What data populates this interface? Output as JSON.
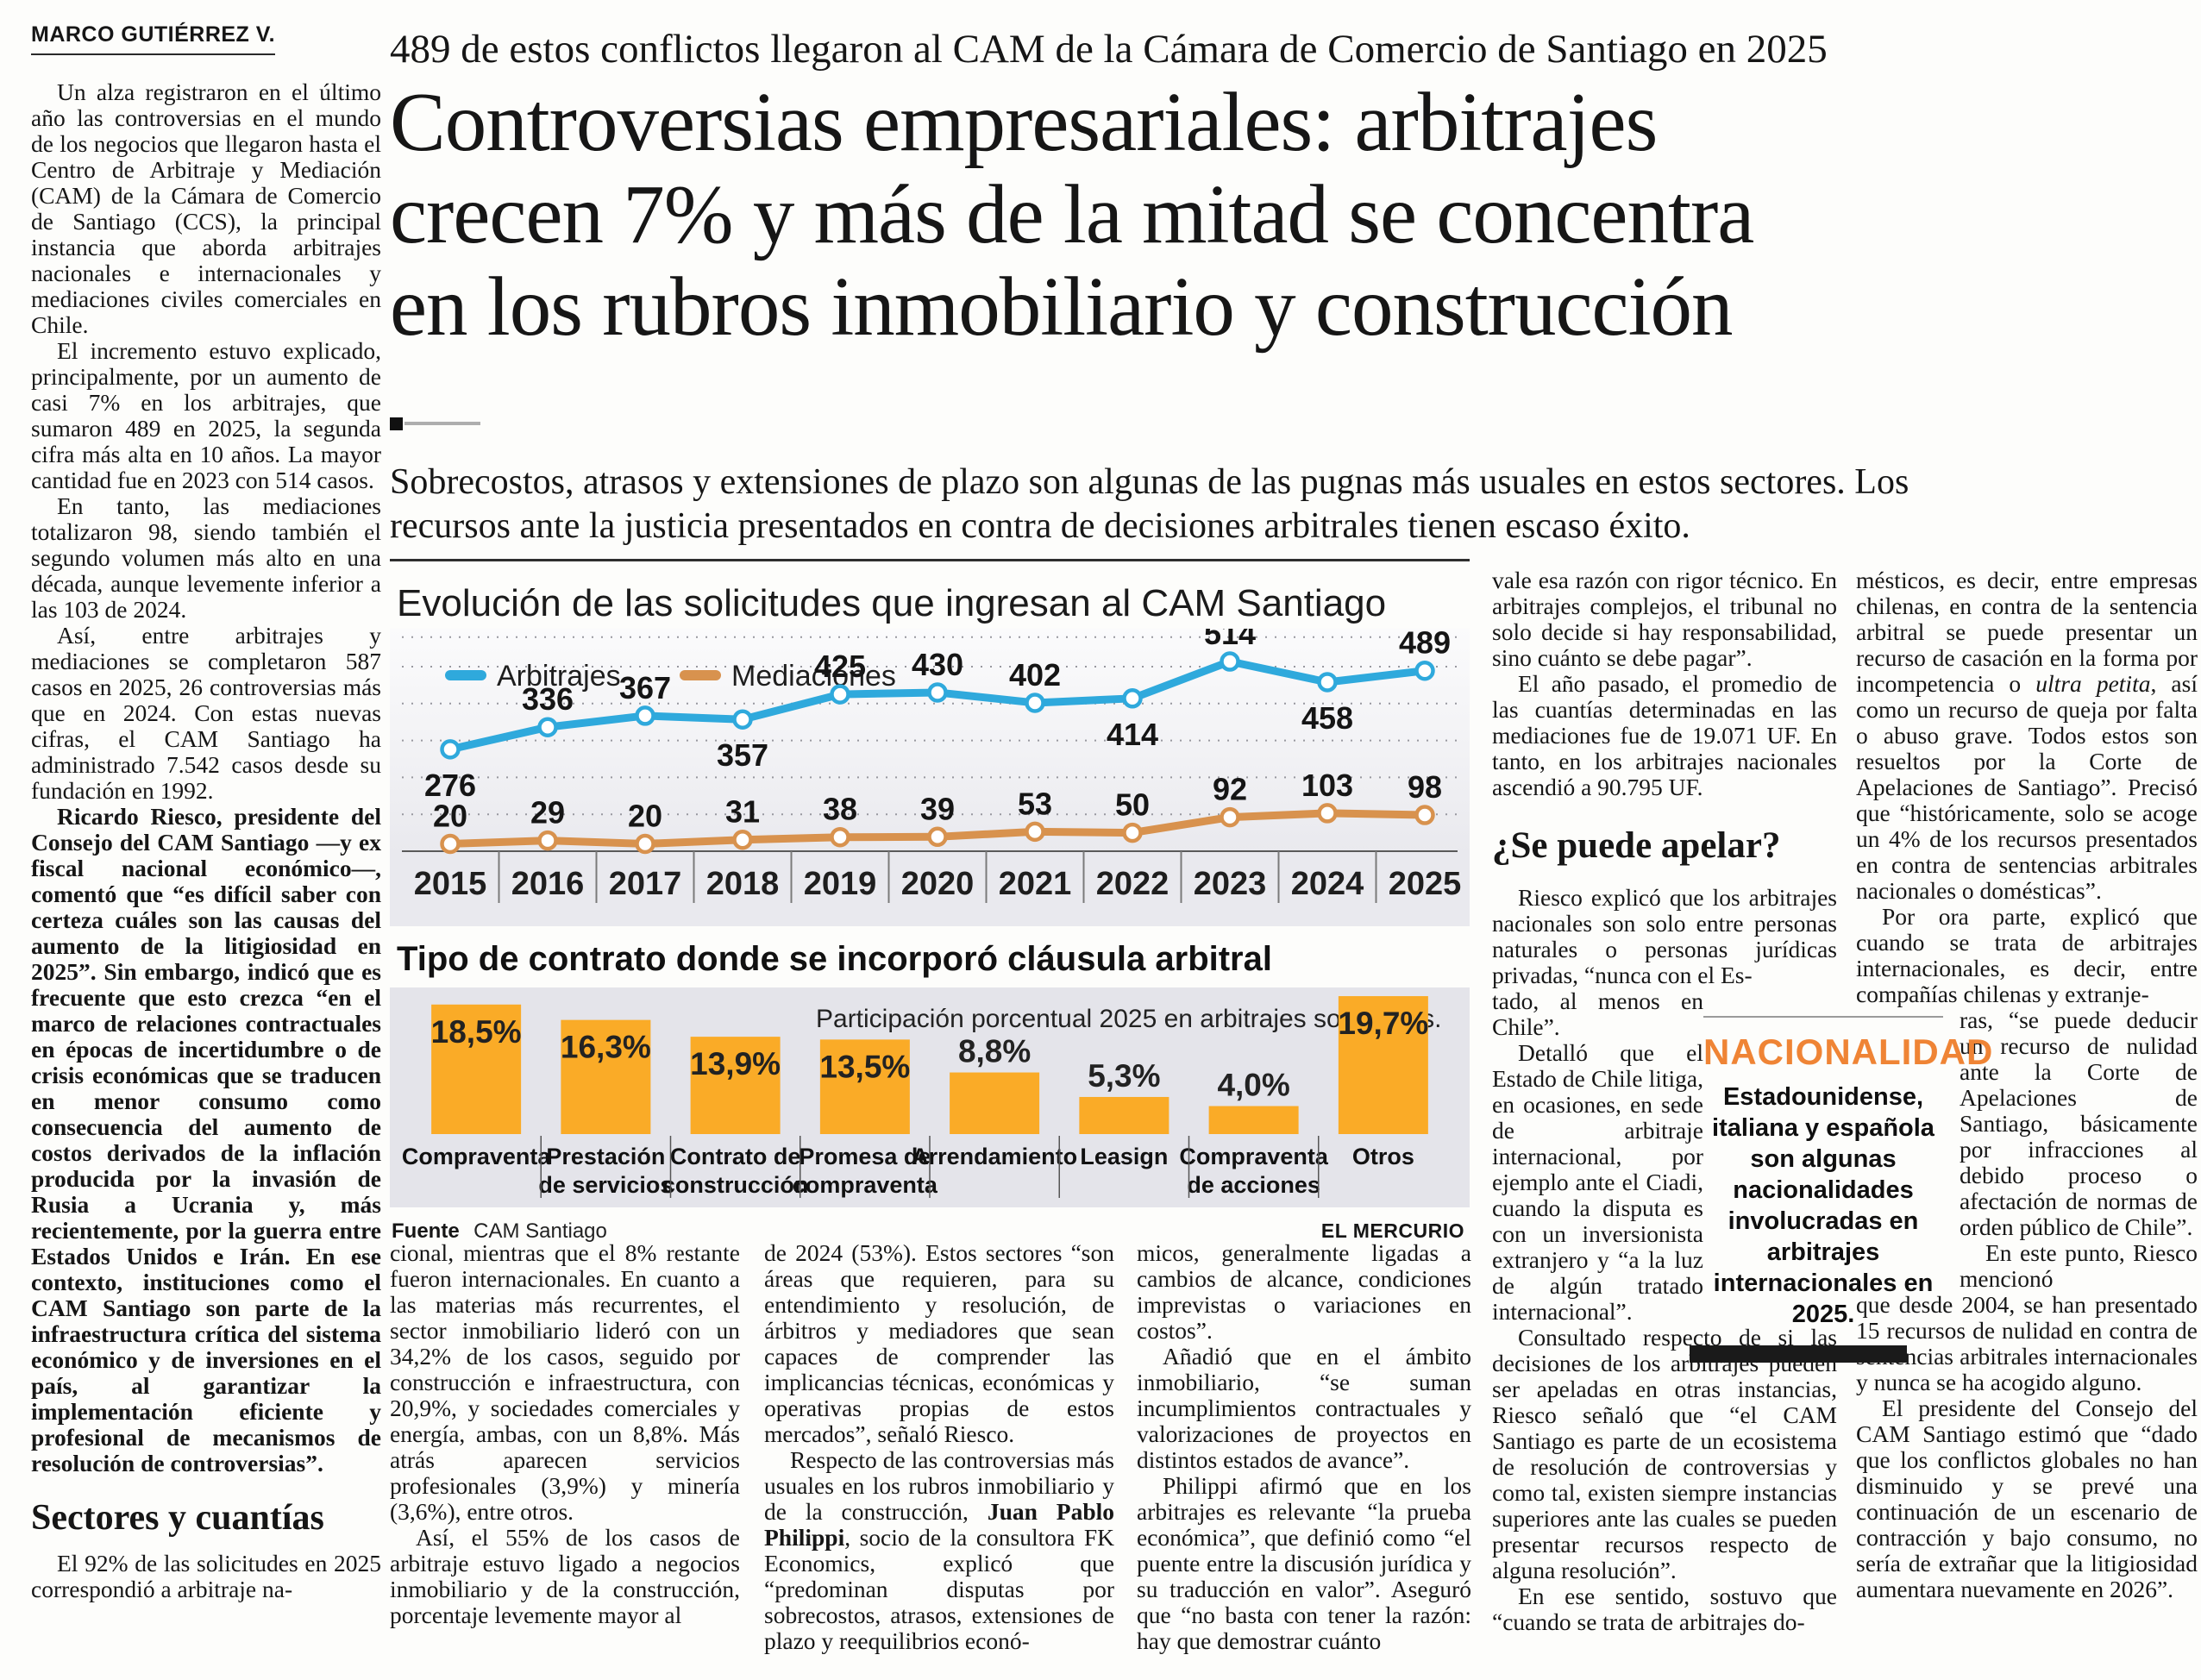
{
  "byline": "MARCO GUTIÉRREZ V.",
  "kicker": "489 de estos conflictos llegaron al CAM de la Cámara de Comercio de Santiago en 2025",
  "headline_lines": [
    {
      "t": "Controversias empresariales: arbitrajes",
      "name": "headline-line"
    },
    {
      "t": "crecen 7% y más de la mitad se concentra",
      "name": "headline-line"
    },
    {
      "t": "en los rubros inmobiliario y construcción",
      "name": "headline-line"
    }
  ],
  "deck_lines": [
    {
      "t": "Sobrecostos, atrasos y extensiones de plazo son algunas de las pugnas más usuales en estos sectores. Los",
      "name": "deck-line"
    },
    {
      "t": "recursos ante la justicia presentados en contra de decisiones arbitrales tienen escaso éxito.",
      "name": "deck-line"
    }
  ],
  "left_column": [
    {
      "t": "Un alza registraron en el último año las controversias en el mundo de los negocios que llegaron hasta el Centro de Arbitraje y Mediación (CAM) de la Cámara de Comercio de Santiago (CCS), la principal instancia que aborda arbitrajes nacionales e internacionales y mediaciones civiles comerciales en Chile."
    },
    {
      "t": "El incremento estuvo explicado, principalmente, por un aumento de casi 7% en los arbitrajes, que sumaron 489 en 2025, la segunda cifra más alta en 10 años. La mayor cantidad fue en 2023 con 514 casos."
    },
    {
      "t": "En tanto, las mediaciones totalizaron 98, siendo también el segundo volumen más alto en una década, aunque levemente inferior a las 103 de 2024."
    },
    {
      "t": "Así, entre arbitrajes y mediaciones se completaron 587 casos en 2025, 26 controversias más que en 2024. Con estas nuevas cifras, el CAM Santiago ha administrado 7.542 casos desde su fundación en 1992."
    },
    {
      "seg": [
        {
          "t": "Ricardo Riesco, presidente del Consejo del CAM Santiago —y ex fiscal nacional económico—, comentó que “es difícil saber con certeza cuáles son las causas del aumento de la litigiosidad en 2025”. Sin embargo, indicó que es frecuente que esto crezca “en el marco de relaciones contractuales en épocas de incertidumbre o de crisis económicas que se traducen en menor consumo como consecuencia del aumento de costos derivados de la inflación producida por la invasión de Rusia a Ucrania y, más recientemente, por la guerra entre Estados Unidos e Irán. En ese contexto, instituciones como el CAM Santiago son parte de la infraestructura crítica del sistema económico y de inversiones en el país, al garantizar la implementación eficiente y profesional de mecanismos de resolución de controversias”.",
          "b": true
        }
      ]
    },
    {
      "t": "Sectores y cuantías",
      "cls": "subhead",
      "tag": "h2",
      "name": "section-subhead"
    },
    {
      "t": "El 92% de las solicitudes en 2025 correspondió a arbitraje na-"
    }
  ],
  "columns": {
    "col1": [
      {
        "t": "cional, mientras que el 8% restante fueron internacionales. En cuanto a las materias más recurrentes, el sector inmobiliario lideró con un 34,2% de los casos, seguido por construcción e infraestructura, con 20,9%, y sociedades comerciales y energía, ambas, con un 8,8%. Más atrás aparecen servicios profesionales (3,9%) y minería (3,6%), entre otros.",
        "cls": "noind"
      },
      {
        "t": "Así, el 55% de los casos de arbitraje estuvo ligado a negocios inmobiliario y de la construcción, porcentaje levemente mayor al"
      }
    ],
    "col2": [
      {
        "t": "de 2024 (53%). Estos sectores “son áreas que requieren, para su entendimiento y resolución, de árbitros y mediadores que sean capaces de comprender las implicancias técnicas, económicas y operativas propias de estos mercados”, señaló Riesco.",
        "cls": "noind"
      },
      {
        "seg": [
          {
            "t": "Respecto de las controversias más usuales en los rubros inmobiliario y de la construcción, "
          },
          {
            "t": "Juan Pablo Philippi",
            "b": true
          },
          {
            "t": ", socio de la consultora FK Economics, explicó que “predominan disputas por sobrecostos, atrasos, extensiones de plazo y reequilibrios econó-"
          }
        ]
      }
    ],
    "col3": [
      {
        "t": "micos, generalmente ligadas a cambios de alcance, condiciones imprevistas o variaciones en costos”.",
        "cls": "noind"
      },
      {
        "t": "Añadió que en el ámbito inmobiliario, “se suman incumplimientos contractuales y valorizaciones de proyectos en distintos estados de avance”."
      },
      {
        "t": "Philippi afirmó que en los arbitrajes es relevante “la prueba económica”, que definió como “el puente entre la discusión jurídica y su traducción en valor”. Aseguró que “no basta con tener la razón: hay que demostrar cuánto"
      }
    ],
    "col4": [
      {
        "t": "vale esa razón con rigor técnico. En arbitrajes complejos, el tribunal no solo decide si hay responsabilidad, sino cuánto se debe pagar”.",
        "cls": "noind"
      },
      {
        "t": "El año pasado, el promedio de las cuantías determinadas en las mediaciones fue de 19.071 UF. En tanto, en los arbitrajes nacionales ascendió a 90.795 UF."
      },
      {
        "t": "¿Se puede apelar?",
        "cls": "subhead2",
        "tag": "h2",
        "name": "section-subhead"
      },
      {
        "t": "Riesco explicó que los arbitrajes nacionales son solo entre personas naturales o personas jurídicas privadas, “nunca con el Es-"
      },
      {
        "t": "tado, al menos en Chile”.",
        "cls": "narrow noind"
      },
      {
        "t": "Detalló que el Estado de Chile litiga, en ocasiones, en sede de arbitraje internacional, por ejemplo ante el Ciadi, cuando la disputa es con un inversionista extranjero y “a la luz de algún tratado internacional”.",
        "cls": "narrow"
      },
      {
        "t": "Consultado respecto de si las decisiones de los arbitrajes pueden ser apeladas en otras instancias, Riesco señaló que “el CAM Santiago es parte de un ecosistema de resolución de controversias y como tal, existen siempre instancias superiores ante las cuales se pueden presentar recursos respecto de alguna resolución”."
      },
      {
        "t": "En ese sentido, sostuvo que “cuando se trata de arbitrajes do-"
      }
    ],
    "col5": [
      {
        "seg": [
          {
            "t": "mésticos, es decir, entre empresas chilenas, en contra de la sentencia arbitral se puede presentar un recurso de casación en la forma por incompetencia o "
          },
          {
            "t": "ultra petita",
            "i": true
          },
          {
            "t": ", así como un recurso de queja por falta o abuso grave. Todos estos son resueltos por la Corte de Apelaciones de Santiago”. Precisó que “históricamente, solo se acoge un 4% de los recursos presentados en contra de sentencias arbitrales nacionales o domésticas”."
          }
        ],
        "cls": "noind"
      },
      {
        "t": "Por ora parte, explicó que cuando se trata de arbitrajes internacionales, es decir, entre compañías chilenas y extranje-"
      },
      {
        "t": "ras, “se puede deducir un recurso de nulidad ante la Corte de Apelaciones de Santiago, básicamente por infracciones al debido proceso o afectación de normas de orden público de Chile”.",
        "cls": "nright noind"
      },
      {
        "t": "En este punto, Riesco mencionó",
        "cls": "nright"
      },
      {
        "t": "que desde 2004, se han presentado 15 recursos de nulidad en contra de sentencias arbitrales internacionales y nunca se ha acogido alguno.",
        "cls": "noind"
      },
      {
        "t": "El presidente del Consejo del CAM Santiago estimó que “dado que los conflictos globales no han disminuido y se prevé una continuación de un escenario de contracción y bajo consumo, no sería de extrañar que la litigiosidad aumentara nuevamente en 2026”."
      }
    ]
  },
  "nacionalidad": {
    "title": "NACIONALIDAD",
    "title_color": "#EF8435",
    "text": "Estadounidense, italiana y española son algunas nacionalidades involucradas en arbitrajes internacionales en 2025."
  },
  "chart_data": [
    {
      "type": "line",
      "title": "Evolución de las solicitudes que ingresan al CAM Santiago",
      "x": [
        "2015",
        "2016",
        "2017",
        "2018",
        "2019",
        "2020",
        "2021",
        "2022",
        "2023",
        "2024",
        "2025"
      ],
      "series": [
        {
          "name": "Arbitrajes",
          "color": "#2FA9DC",
          "values": [
            276,
            336,
            367,
            357,
            425,
            430,
            402,
            414,
            514,
            458,
            489
          ],
          "label_pos": [
            "below",
            "above",
            "above",
            "below",
            "above",
            "above",
            "above",
            "below",
            "above",
            "below",
            "above"
          ]
        },
        {
          "name": "Mediaciones",
          "color": "#D8924E",
          "values": [
            20,
            29,
            20,
            31,
            38,
            39,
            53,
            50,
            92,
            103,
            98
          ],
          "label_pos": [
            "above",
            "above",
            "above",
            "above",
            "above",
            "above",
            "above",
            "above",
            "above",
            "above",
            "above"
          ]
        }
      ],
      "ylim": [
        0,
        600
      ],
      "grid": true,
      "legend_position": "top-left"
    },
    {
      "type": "bar",
      "title": "Tipo de contrato donde se incorporó cláusula arbitral",
      "note": "Participación porcentual 2025 en arbitrajes solicitados.",
      "categories": [
        "Compraventa",
        "Prestación de servicios",
        "Contrato de construcción",
        "Promesa de compraventa",
        "Arrendamiento",
        "Leasign",
        "Compraventa de acciones",
        "Otros"
      ],
      "category_lines": [
        [
          "Compraventa"
        ],
        [
          "Prestación",
          "de servicios"
        ],
        [
          "Contrato de",
          "construcción"
        ],
        [
          "Promesa de",
          "compraventa"
        ],
        [
          "Arrendamiento"
        ],
        [
          "Leasign"
        ],
        [
          "Compraventa",
          "de acciones"
        ],
        [
          "Otros"
        ]
      ],
      "values": [
        18.5,
        16.3,
        13.9,
        13.5,
        8.8,
        5.3,
        4.0,
        19.7
      ],
      "value_labels": [
        "18,5%",
        "16,3%",
        "13,9%",
        "13,5%",
        "8,8%",
        "5,3%",
        "4,0%",
        "19,7%"
      ],
      "bar_color": "#FAAB27",
      "ylim": [
        0,
        20
      ],
      "source_label": "Fuente",
      "source": "CAM Santiago",
      "credit": "EL MERCURIO"
    }
  ],
  "colors": {
    "accent_blue": "#2FA9DC",
    "accent_orange_line": "#D8924E",
    "accent_bar": "#FAAB27",
    "heading_orange": "#EF8435",
    "panel_gray": "#E4E4EA"
  }
}
